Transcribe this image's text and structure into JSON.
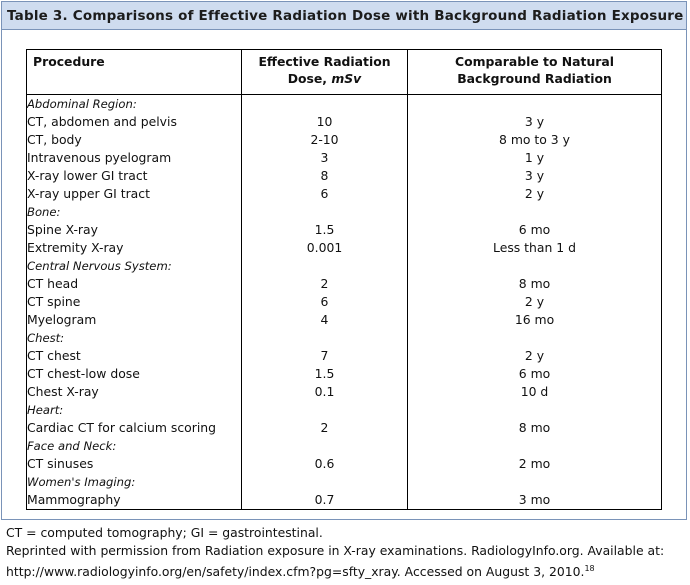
{
  "title": "Table 3. Comparisons of Effective Radiation Dose with Background Radiation Exposure",
  "headers": {
    "procedure": "Procedure",
    "dose_line1": "Effective Radiation",
    "dose_line2": "Dose,",
    "dose_unit": "mSv",
    "comparable_line1": "Comparable to Natural",
    "comparable_line2": "Background Radiation"
  },
  "rows": [
    {
      "type": "category",
      "label": "Abdominal Region:"
    },
    {
      "type": "item",
      "label": "CT, abdomen and pelvis",
      "dose": "10",
      "comparable": "3 y"
    },
    {
      "type": "item",
      "label": "CT, body",
      "dose": "2-10",
      "comparable": "8 mo to 3 y"
    },
    {
      "type": "item",
      "label": "Intravenous pyelogram",
      "dose": "3",
      "comparable": "1 y"
    },
    {
      "type": "item",
      "label": "X-ray lower GI tract",
      "dose": "8",
      "comparable": "3 y"
    },
    {
      "type": "item",
      "label": "X-ray upper GI tract",
      "dose": "6",
      "comparable": "2 y"
    },
    {
      "type": "category",
      "label": "Bone:"
    },
    {
      "type": "item",
      "label": "Spine X-ray",
      "dose": "1.5",
      "comparable": "6 mo"
    },
    {
      "type": "item",
      "label": "Extremity X-ray",
      "dose": "0.001",
      "comparable": "Less than 1 d"
    },
    {
      "type": "category",
      "label": "Central Nervous System:"
    },
    {
      "type": "item",
      "label": "CT head",
      "dose": "2",
      "comparable": "8 mo"
    },
    {
      "type": "item",
      "label": "CT spine",
      "dose": "6",
      "comparable": "2 y"
    },
    {
      "type": "item",
      "label": "Myelogram",
      "dose": "4",
      "comparable": "16 mo"
    },
    {
      "type": "category",
      "label": "Chest:"
    },
    {
      "type": "item",
      "label": "CT chest",
      "dose": "7",
      "comparable": "2 y"
    },
    {
      "type": "item",
      "label": "CT chest-low dose",
      "dose": "1.5",
      "comparable": "6 mo"
    },
    {
      "type": "item",
      "label": "Chest X-ray",
      "dose": "0.1",
      "comparable": "10 d"
    },
    {
      "type": "category",
      "label": "Heart:"
    },
    {
      "type": "item",
      "label": "Cardiac CT for calcium scoring",
      "dose": "2",
      "comparable": "8 mo"
    },
    {
      "type": "category",
      "label": "Face and Neck:"
    },
    {
      "type": "item",
      "label": "CT sinuses",
      "dose": "0.6",
      "comparable": "2 mo"
    },
    {
      "type": "category",
      "label": "Women's Imaging:"
    },
    {
      "type": "item",
      "label": "Mammography",
      "dose": "0.7",
      "comparable": "3 mo"
    }
  ],
  "footnotes": {
    "abbreviations": "CT = computed tomography; GI = gastrointestinal.",
    "source_line1": "Reprinted with permission from Radiation exposure in X-ray examinations. RadiologyInfo.org. Available at:",
    "source_line2": "http://www.radiologyinfo.org/en/safety/index.cfm?pg=sfty_xray. Accessed on August 3, 2010.",
    "ref": "18"
  },
  "colors": {
    "title_bar": "#cfdcef",
    "frame_border": "#7a93b8"
  }
}
